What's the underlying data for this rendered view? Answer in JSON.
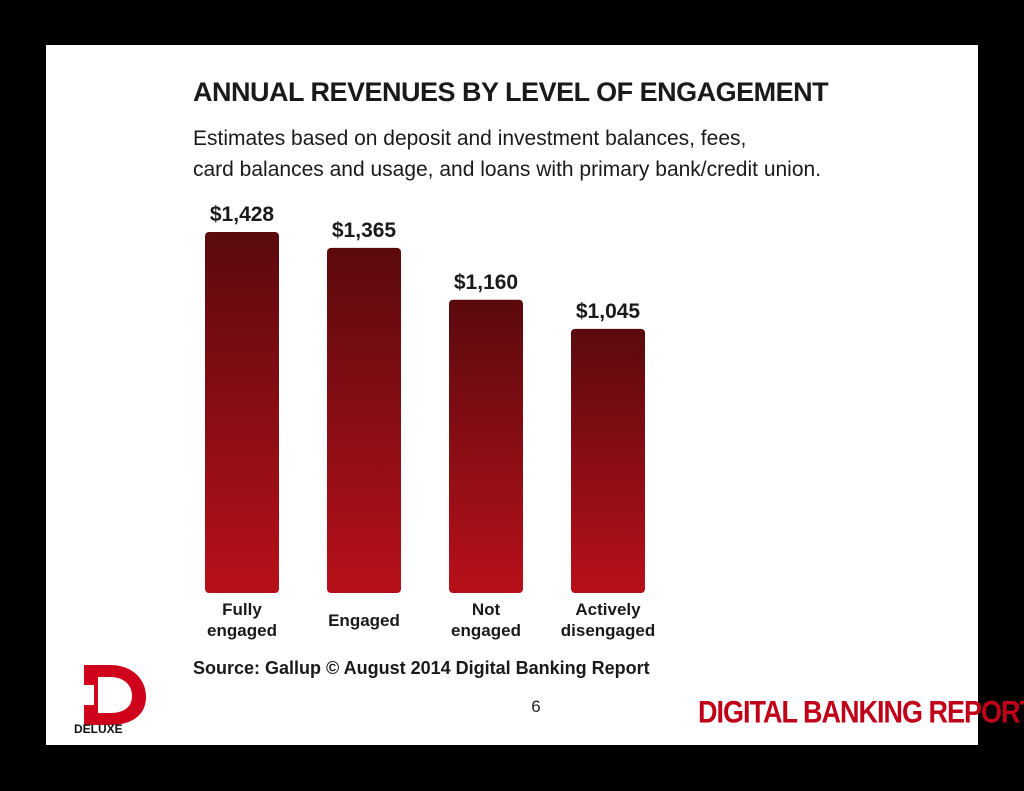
{
  "chart_data": {
    "type": "bar",
    "title": "ANNUAL REVENUES BY LEVEL OF ENGAGEMENT",
    "subtitle_lines": [
      "Estimates based on deposit and investment balances, fees,",
      "card balances and usage, and loans with primary bank/credit union."
    ],
    "categories": [
      [
        "Fully",
        "engaged"
      ],
      [
        "Engaged"
      ],
      [
        "Not",
        "engaged"
      ],
      [
        "Actively",
        "disengaged"
      ]
    ],
    "values": [
      1428,
      1365,
      1160,
      1045
    ],
    "value_labels": [
      "$1,428",
      "$1,365",
      "$1,160",
      "$1,045"
    ],
    "xlabel": "",
    "ylabel": "",
    "ylim": [
      0,
      1428
    ],
    "grid": false,
    "legend": "none",
    "bar_color_top": "#5a0a0e",
    "bar_color_bottom": "#b8101a"
  },
  "footer": {
    "source": "Source: Gallup © August 2014 Digital Banking Report",
    "page_number": "6",
    "brand": "DIGITAL BANKING REPORT",
    "logo_text": "DELUXE",
    "brand_color": "#c00018"
  }
}
